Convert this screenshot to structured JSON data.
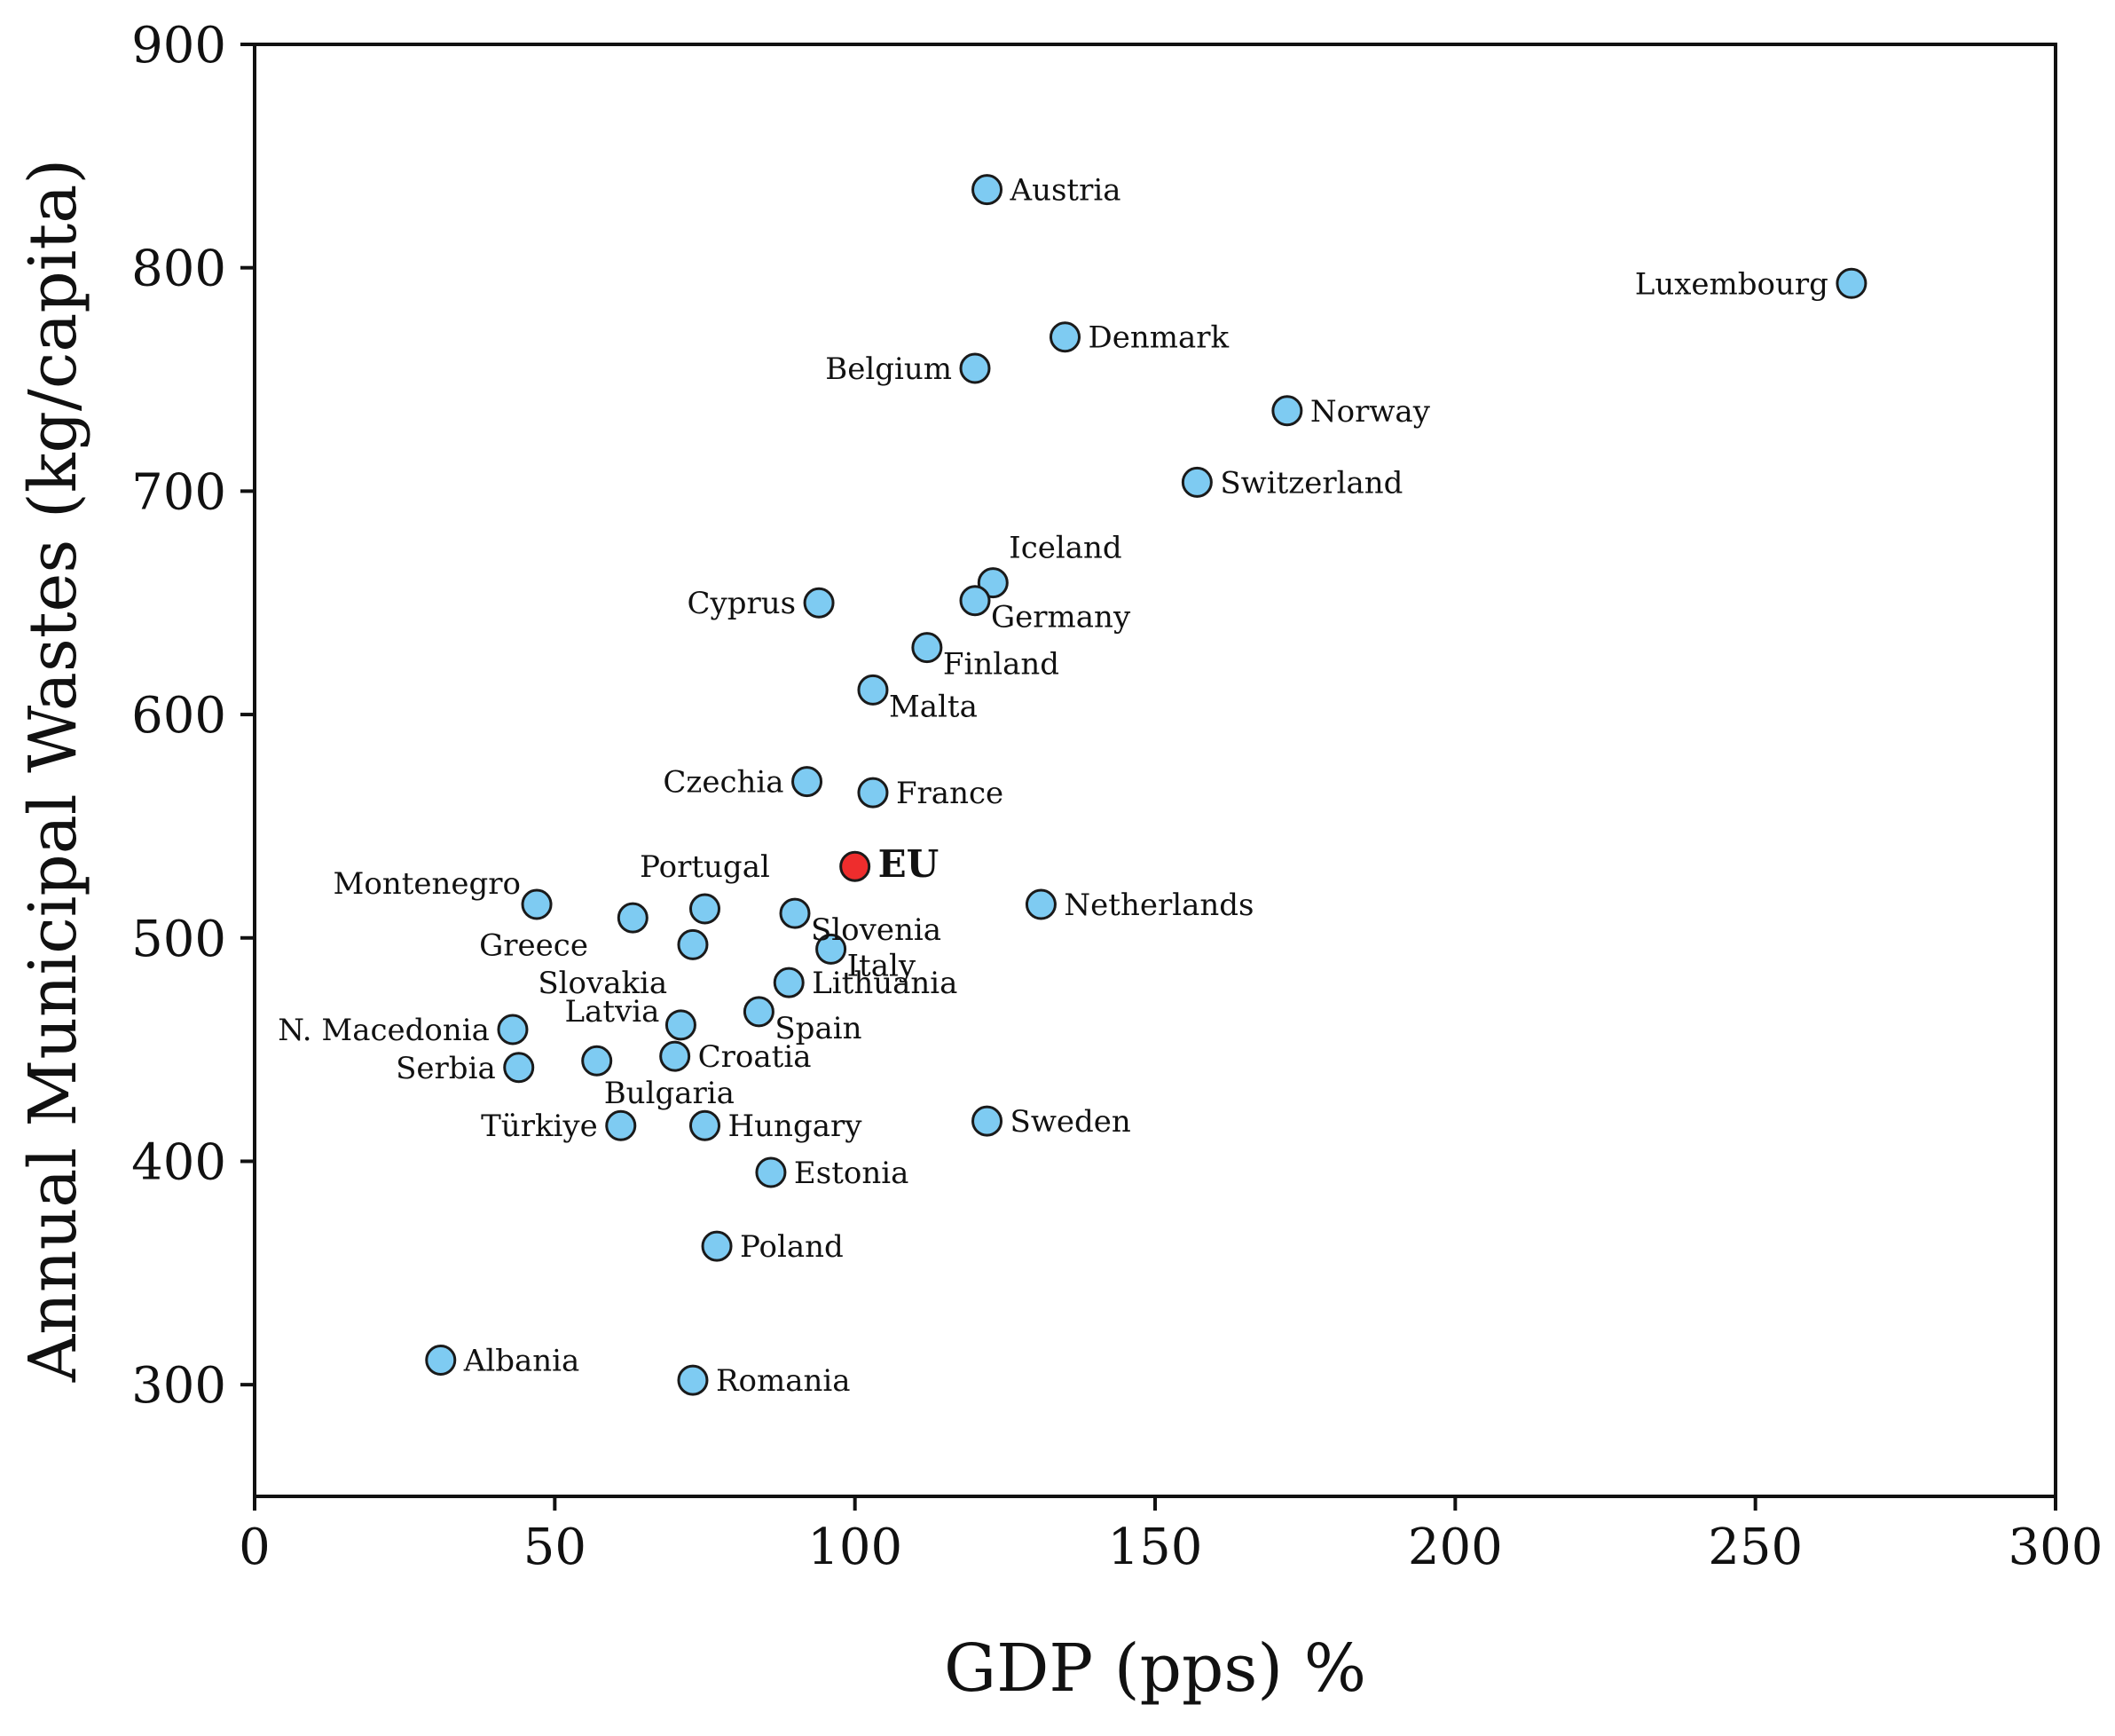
{
  "chart_data": {
    "type": "scatter",
    "title": "",
    "xlabel": "GDP (pps) %",
    "ylabel": "Annual Municipal Wastes (kg/capita)",
    "xlim": [
      0,
      300
    ],
    "ylim": [
      250,
      900
    ],
    "xticks": [
      0,
      50,
      100,
      150,
      200,
      250,
      300
    ],
    "yticks": [
      300,
      400,
      500,
      600,
      700,
      800,
      900
    ],
    "grid": false,
    "colors": {
      "country": "#7ecbf2",
      "highlight": "#ee2d2d",
      "outline": "#1a1a1a"
    },
    "points": [
      {
        "label": "Austria",
        "x": 122,
        "y": 835,
        "anchor": "right"
      },
      {
        "label": "Luxembourg",
        "x": 266,
        "y": 793,
        "anchor": "left"
      },
      {
        "label": "Denmark",
        "x": 135,
        "y": 769,
        "anchor": "right"
      },
      {
        "label": "Belgium",
        "x": 120,
        "y": 755,
        "anchor": "left"
      },
      {
        "label": "Norway",
        "x": 172,
        "y": 736,
        "anchor": "right"
      },
      {
        "label": "Switzerland",
        "x": 157,
        "y": 704,
        "anchor": "right"
      },
      {
        "label": "Iceland",
        "x": 123,
        "y": 659,
        "anchor": "above-right"
      },
      {
        "label": "Germany",
        "x": 120,
        "y": 651,
        "anchor": "below-right"
      },
      {
        "label": "Cyprus",
        "x": 94,
        "y": 650,
        "anchor": "left"
      },
      {
        "label": "Finland",
        "x": 112,
        "y": 630,
        "anchor": "below-right"
      },
      {
        "label": "Malta",
        "x": 103,
        "y": 611,
        "anchor": "below-right"
      },
      {
        "label": "Czechia",
        "x": 92,
        "y": 570,
        "anchor": "left"
      },
      {
        "label": "France",
        "x": 103,
        "y": 565,
        "anchor": "right"
      },
      {
        "label": "EU",
        "x": 100,
        "y": 532,
        "anchor": "right",
        "highlight": true
      },
      {
        "label": "Montenegro",
        "x": 47,
        "y": 515,
        "anchor": "above-left"
      },
      {
        "label": "Netherlands",
        "x": 131,
        "y": 515,
        "anchor": "right"
      },
      {
        "label": "Portugal",
        "x": 75,
        "y": 513,
        "anchor": "above"
      },
      {
        "label": "Slovenia",
        "x": 90,
        "y": 511,
        "anchor": "below-right"
      },
      {
        "label": "",
        "x": 63,
        "y": 509,
        "anchor": "none"
      },
      {
        "label": "Greece",
        "x": 73,
        "y": 497,
        "anchor": "far-left"
      },
      {
        "label": "Italy",
        "x": 96,
        "y": 495,
        "anchor": "below-right"
      },
      {
        "label": "Slovakia",
        "x": 89,
        "y": 480,
        "anchor": "far-left-up"
      },
      {
        "label": "Lithuania",
        "x": 89,
        "y": 480,
        "anchor": "right"
      },
      {
        "label": "Spain",
        "x": 84,
        "y": 467,
        "anchor": "below-right"
      },
      {
        "label": "Latvia",
        "x": 71,
        "y": 461,
        "anchor": "left-up"
      },
      {
        "label": "N. Macedonia",
        "x": 43,
        "y": 459,
        "anchor": "left"
      },
      {
        "label": "Croatia",
        "x": 70,
        "y": 447,
        "anchor": "right"
      },
      {
        "label": "",
        "x": 57,
        "y": 445,
        "anchor": "none"
      },
      {
        "label": "Serbia",
        "x": 44,
        "y": 442,
        "anchor": "left"
      },
      {
        "label": "Bulgaria",
        "x": 57,
        "y": 445,
        "anchor": "below-right-far"
      },
      {
        "label": "Türkiye",
        "x": 61,
        "y": 416,
        "anchor": "left"
      },
      {
        "label": "Hungary",
        "x": 75,
        "y": 416,
        "anchor": "right"
      },
      {
        "label": "Sweden",
        "x": 122,
        "y": 418,
        "anchor": "right"
      },
      {
        "label": "Estonia",
        "x": 86,
        "y": 395,
        "anchor": "right"
      },
      {
        "label": "Poland",
        "x": 77,
        "y": 362,
        "anchor": "right"
      },
      {
        "label": "Albania",
        "x": 31,
        "y": 311,
        "anchor": "right"
      },
      {
        "label": "Romania",
        "x": 73,
        "y": 302,
        "anchor": "right"
      }
    ]
  }
}
